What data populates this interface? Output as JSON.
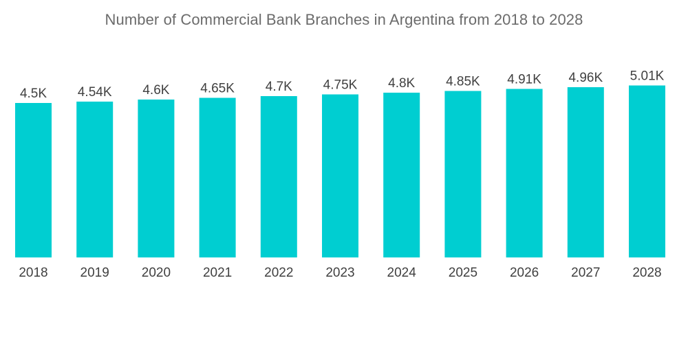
{
  "chart_data": {
    "type": "bar",
    "title": "Number of Commercial Bank Branches in Argentina from 2018 to 2028",
    "xlabel": "",
    "ylabel": "",
    "categories": [
      "2018",
      "2019",
      "2020",
      "2021",
      "2022",
      "2023",
      "2024",
      "2025",
      "2026",
      "2027",
      "2028"
    ],
    "values": [
      4500,
      4540,
      4600,
      4650,
      4700,
      4750,
      4800,
      4850,
      4910,
      4960,
      5010
    ],
    "data_labels": [
      "4.5K",
      "4.54K",
      "4.6K",
      "4.65K",
      "4.7K",
      "4.75K",
      "4.8K",
      "4.85K",
      "4.91K",
      "4.96K",
      "5.01K"
    ],
    "ylim": [
      0,
      5500
    ],
    "grid": false,
    "legend": "none",
    "bar_color": "#00CED1"
  }
}
